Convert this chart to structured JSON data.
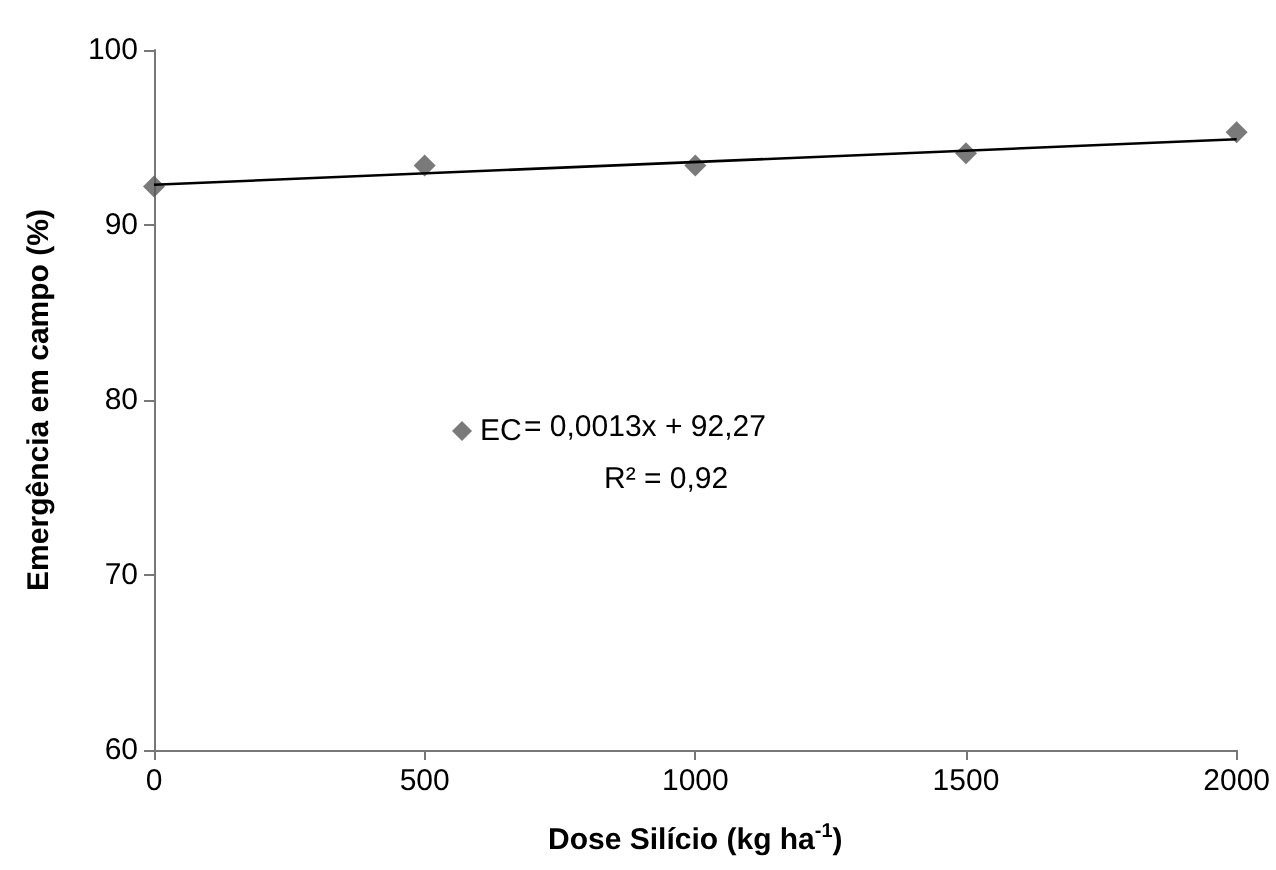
{
  "chart_data": {
    "type": "scatter",
    "xlabel": "Dose Silício (kg ha$^{-1}$)",
    "ylabel": "Emergência em campo (%)",
    "x": [
      0,
      500,
      1000,
      1500,
      2000
    ],
    "series": [
      {
        "type": "scatter",
        "name": "EC",
        "color": "#595959",
        "marker": "diamond",
        "values": [
          92.2,
          93.4,
          93.4,
          94.1,
          95.3
        ]
      },
      {
        "type": "line",
        "color": "#000000",
        "marker": "none",
        "x": [
          0,
          2000
        ],
        "values": [
          92.3,
          94.9
        ]
      }
    ],
    "annotations": [
      "= 0,0013x + 92,27",
      "R² = 0,92"
    ],
    "xlim": [
      0,
      2000
    ],
    "xticks": [
      0,
      500,
      1000,
      1500,
      2000
    ],
    "ylim": [
      60,
      100
    ],
    "yticks": [
      60,
      70,
      80,
      90,
      100
    ],
    "grid": false,
    "legend": "center"
  }
}
